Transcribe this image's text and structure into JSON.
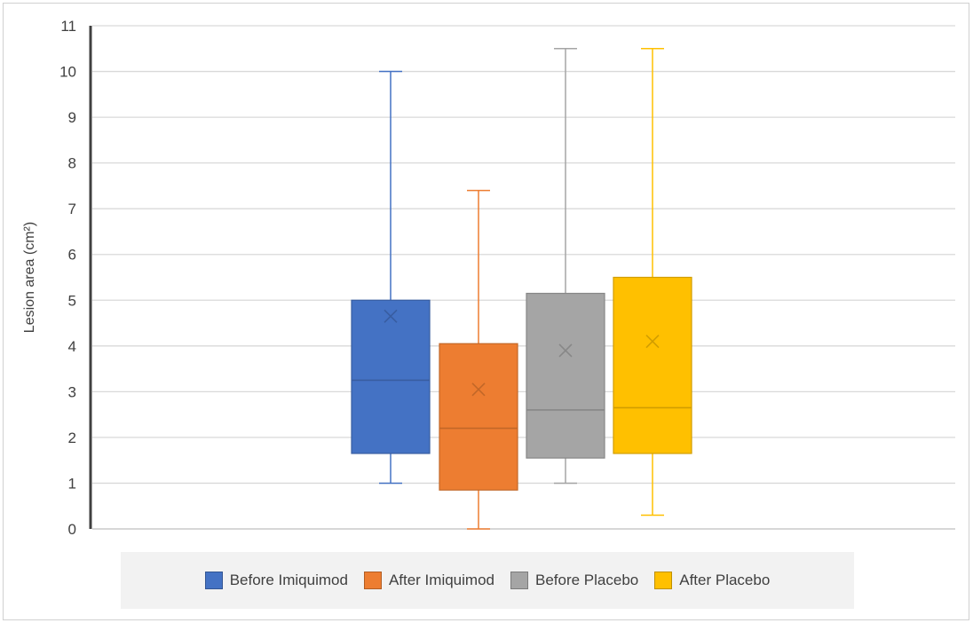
{
  "chart_data": {
    "type": "boxplot",
    "ylabel": "Lesion area (cm²)",
    "ylim": [
      0,
      11
    ],
    "yticks": [
      "0",
      "1",
      "2",
      "3",
      "4",
      "5",
      "6",
      "7",
      "8",
      "9",
      "10",
      "11"
    ],
    "grid": true,
    "legend_position": "bottom",
    "series": [
      {
        "name": "Before Imiquimod",
        "color": "#4472C4",
        "min": 1.0,
        "q1": 1.65,
        "median": 3.25,
        "q3": 5.0,
        "max": 10.0,
        "mean": 4.65
      },
      {
        "name": "After Imiquimod",
        "color": "#ED7D31",
        "min": 0.0,
        "q1": 0.85,
        "median": 2.2,
        "q3": 4.05,
        "max": 7.4,
        "mean": 3.05
      },
      {
        "name": "Before Placebo",
        "color": "#A5A5A5",
        "min": 1.0,
        "q1": 1.55,
        "median": 2.6,
        "q3": 5.15,
        "max": 10.5,
        "mean": 3.9
      },
      {
        "name": "After Placebo",
        "color": "#FFC000",
        "min": 0.3,
        "q1": 1.65,
        "median": 2.65,
        "q3": 5.5,
        "max": 10.5,
        "mean": 4.1
      }
    ]
  }
}
